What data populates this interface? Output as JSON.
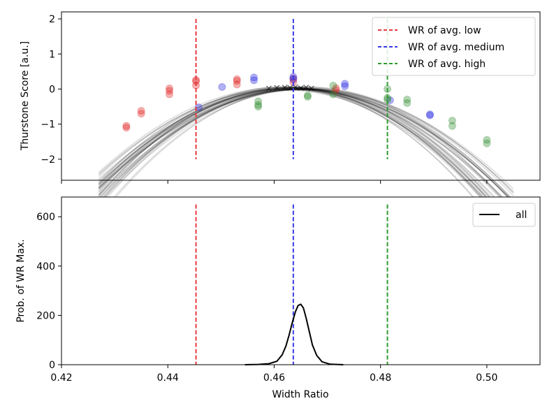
{
  "chart_data": [
    {
      "type": "scatter",
      "panel": "top",
      "ylabel": "Thurstone Score [a.u.]",
      "xlim": [
        0.42,
        0.51
      ],
      "ylim": [
        -2.6,
        2.2
      ],
      "yticks": [
        2,
        1,
        0,
        -1,
        -2
      ],
      "ytick_labels": [
        "2",
        "1",
        "0",
        "−1",
        "−2"
      ],
      "xticks": [
        0.42,
        0.44,
        0.46,
        0.48,
        0.5
      ],
      "legend_position": "upper right",
      "vlines": [
        {
          "name": "WR of avg. low",
          "x": 0.4453,
          "y0": -2.0,
          "y1": 2.0,
          "color": "#e8393f"
        },
        {
          "name": "WR of avg. medium",
          "x": 0.4636,
          "y0": -2.0,
          "y1": 2.0,
          "color": "#3a3ae8"
        },
        {
          "name": "WR of avg. high",
          "x": 0.4813,
          "y0": -2.0,
          "y1": 2.0,
          "color": "#2e9b2e"
        }
      ],
      "fit_curves": {
        "description": "bootstrap quadratic fits",
        "x_range": [
          0.427,
          0.505
        ],
        "vertex_x_range": [
          0.4615,
          0.4665
        ],
        "vertex_y_range": [
          -0.03,
          0.07
        ],
        "curvature_range": [
          1850,
          2500
        ],
        "count": 40,
        "color": "#000000"
      },
      "points": {
        "low": {
          "color": "#e02020",
          "x": [
            0.4322,
            0.4322,
            0.435,
            0.435,
            0.4403,
            0.4403,
            0.4403,
            0.4453,
            0.4453,
            0.4453,
            0.453,
            0.453,
            0.453,
            0.4636,
            0.4636,
            0.4716,
            0.4716
          ],
          "y": [
            -1.1,
            -1.05,
            -0.7,
            -0.62,
            -0.15,
            -0.05,
            0.02,
            0.1,
            0.22,
            0.26,
            0.13,
            0.23,
            0.28,
            0.2,
            0.3,
            -0.03,
            0.03
          ]
        },
        "medium": {
          "color": "#2020e0",
          "x": [
            0.4458,
            0.4502,
            0.4562,
            0.4562,
            0.4636,
            0.4636,
            0.4733,
            0.4733,
            0.4818,
            0.4893,
            0.4893
          ],
          "y": [
            -0.52,
            0.06,
            0.25,
            0.33,
            0.28,
            0.35,
            0.15,
            0.08,
            -0.32,
            -0.72,
            -0.75
          ]
        },
        "high": {
          "color": "#2a8a2a",
          "x": [
            0.457,
            0.457,
            0.457,
            0.4663,
            0.4663,
            0.4711,
            0.4711,
            0.4813,
            0.4813,
            0.4813,
            0.485,
            0.485,
            0.4935,
            0.4935,
            0.5,
            0.5
          ],
          "y": [
            -0.35,
            -0.45,
            -0.5,
            -0.18,
            -0.22,
            -0.15,
            0.1,
            -0.25,
            -0.3,
            0.0,
            -0.3,
            -0.4,
            -0.9,
            -1.05,
            -1.45,
            -1.55
          ]
        }
      },
      "vertex_markers": {
        "marker": "x",
        "color": "#000000",
        "x": [
          0.459,
          0.4605,
          0.462,
          0.463,
          0.464,
          0.465,
          0.466,
          0.467
        ],
        "y": [
          0.02,
          0.04,
          0.05,
          0.04,
          0.06,
          0.03,
          0.05,
          0.02
        ]
      }
    },
    {
      "type": "line",
      "panel": "bottom",
      "xlabel": "Width Ratio",
      "ylabel": "Prob. of WR Max.",
      "xlim": [
        0.42,
        0.51
      ],
      "ylim": [
        0,
        680
      ],
      "yticks": [
        0,
        200,
        400,
        600
      ],
      "ytick_labels": [
        "0",
        "200",
        "400",
        "600"
      ],
      "xticks": [
        0.42,
        0.44,
        0.46,
        0.48,
        0.5
      ],
      "xtick_labels": [
        "0.42",
        "0.44",
        "0.46",
        "0.48",
        "0.50"
      ],
      "legend_position": "upper right",
      "vlines": [
        {
          "x": 0.4453,
          "y0": 0,
          "y1": 650,
          "color": "#e8393f"
        },
        {
          "x": 0.4636,
          "y0": 0,
          "y1": 650,
          "color": "#3a3ae8"
        },
        {
          "x": 0.4813,
          "y0": 0,
          "y1": 650,
          "color": "#2e9b2e"
        }
      ],
      "series": [
        {
          "name": "all",
          "color": "#000000",
          "x": [
            0.4545,
            0.457,
            0.459,
            0.4605,
            0.4615,
            0.4622,
            0.4628,
            0.4634,
            0.464,
            0.4645,
            0.465,
            0.4655,
            0.466,
            0.4666,
            0.4672,
            0.468,
            0.469,
            0.4705,
            0.473
          ],
          "y": [
            0,
            1,
            4,
            14,
            40,
            75,
            120,
            170,
            215,
            240,
            245,
            230,
            190,
            135,
            80,
            38,
            12,
            2,
            0
          ]
        }
      ]
    }
  ]
}
